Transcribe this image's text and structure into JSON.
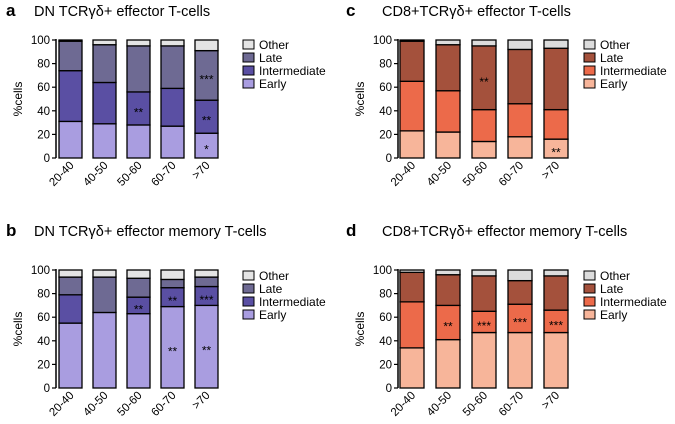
{
  "chart_data": [
    {
      "panel": "a",
      "type": "bar",
      "stacked": true,
      "title": "DN TCRγδ+ effector T-cells",
      "ylabel": "%cells",
      "ylim": [
        0,
        100
      ],
      "yticks": [
        0,
        20,
        40,
        60,
        80,
        100
      ],
      "categories": [
        "20-40",
        "40-50",
        "50-60",
        "60-70",
        ">70"
      ],
      "series": [
        {
          "name": "Early",
          "color": "#a99de0",
          "values": [
            31,
            29,
            28,
            27,
            21
          ]
        },
        {
          "name": "Intermediate",
          "color": "#5a4fa3",
          "values": [
            43,
            35,
            28,
            32,
            28
          ]
        },
        {
          "name": "Late",
          "color": "#6e6a93",
          "values": [
            25,
            32,
            39,
            36,
            42
          ]
        },
        {
          "name": "Other",
          "color": "#e4e4e4",
          "values": [
            1,
            4,
            5,
            5,
            9
          ]
        }
      ],
      "legend": [
        "Other",
        "Late",
        "Intermediate",
        "Early"
      ],
      "annotations": [
        {
          "category": ">70",
          "series": "Late",
          "text": "***"
        },
        {
          "category": "50-60",
          "series": "Intermediate",
          "text": "**"
        },
        {
          "category": ">70",
          "series": "Intermediate",
          "text": "**"
        },
        {
          "category": ">70",
          "series": "Early",
          "text": "*"
        }
      ]
    },
    {
      "panel": "b",
      "type": "bar",
      "stacked": true,
      "title": "DN TCRγδ+ effector memory T-cells",
      "ylabel": "%cells",
      "ylim": [
        0,
        100
      ],
      "yticks": [
        0,
        20,
        40,
        60,
        80,
        100
      ],
      "categories": [
        "20-40",
        "40-50",
        "50-60",
        "60-70",
        ">70"
      ],
      "series": [
        {
          "name": "Early",
          "color": "#a99de0",
          "values": [
            55,
            64,
            63,
            69,
            70
          ]
        },
        {
          "name": "Intermediate",
          "color": "#5a4fa3",
          "values": [
            24,
            0,
            14,
            16,
            16
          ]
        },
        {
          "name": "Late",
          "color": "#6e6a93",
          "values": [
            15,
            30,
            16,
            7,
            8
          ]
        },
        {
          "name": "Other",
          "color": "#e4e4e4",
          "values": [
            6,
            6,
            7,
            8,
            6
          ]
        }
      ],
      "legend": [
        "Other",
        "Late",
        "Intermediate",
        "Early"
      ],
      "annotations": [
        {
          "category": "50-60",
          "series": "Intermediate",
          "text": "**"
        },
        {
          "category": "60-70",
          "series": "Intermediate",
          "text": "**"
        },
        {
          "category": ">70",
          "series": "Intermediate",
          "text": "***"
        },
        {
          "category": "60-70",
          "series": "Early",
          "text": "**"
        },
        {
          "category": ">70",
          "series": "Early",
          "text": "**"
        }
      ]
    },
    {
      "panel": "c",
      "type": "bar",
      "stacked": true,
      "title": "CD8+TCRγδ+ effector T-cells",
      "ylabel": "%cells",
      "ylim": [
        0,
        100
      ],
      "yticks": [
        0,
        20,
        40,
        60,
        80,
        100
      ],
      "categories": [
        "20-40",
        "40-50",
        "50-60",
        "60-70",
        ">70"
      ],
      "series": [
        {
          "name": "Early",
          "color": "#f7b59a",
          "values": [
            23,
            22,
            14,
            18,
            16
          ]
        },
        {
          "name": "Intermediate",
          "color": "#ec6a4a",
          "values": [
            42,
            35,
            27,
            28,
            25
          ]
        },
        {
          "name": "Late",
          "color": "#a4513c",
          "values": [
            34,
            39,
            54,
            46,
            52
          ]
        },
        {
          "name": "Other",
          "color": "#dcdcdc",
          "values": [
            1,
            4,
            5,
            8,
            7
          ]
        }
      ],
      "legend": [
        "Other",
        "Late",
        "Intermediate",
        "Early"
      ],
      "annotations": [
        {
          "category": "50-60",
          "series": "Late",
          "text": "**"
        },
        {
          "category": ">70",
          "series": "Early",
          "text": "**"
        }
      ]
    },
    {
      "panel": "d",
      "type": "bar",
      "stacked": true,
      "title": "CD8+TCRγδ+ effector memory T-cells",
      "ylabel": "%cells",
      "ylim": [
        0,
        100
      ],
      "yticks": [
        0,
        20,
        40,
        60,
        80,
        100
      ],
      "categories": [
        "20-40",
        "40-50",
        "50-60",
        "60-70",
        ">70"
      ],
      "series": [
        {
          "name": "Early",
          "color": "#f7b59a",
          "values": [
            34,
            41,
            47,
            47,
            47
          ]
        },
        {
          "name": "Intermediate",
          "color": "#ec6a4a",
          "values": [
            39,
            29,
            18,
            24,
            19
          ]
        },
        {
          "name": "Late",
          "color": "#a4513c",
          "values": [
            25,
            26,
            30,
            20,
            29
          ]
        },
        {
          "name": "Other",
          "color": "#dcdcdc",
          "values": [
            2,
            4,
            5,
            9,
            5
          ]
        }
      ],
      "legend": [
        "Other",
        "Late",
        "Intermediate",
        "Early"
      ],
      "annotations": [
        {
          "category": "40-50",
          "series": "Intermediate",
          "text": "**"
        },
        {
          "category": "50-60",
          "series": "Intermediate",
          "text": "***"
        },
        {
          "category": "60-70",
          "series": "Intermediate",
          "text": "***"
        },
        {
          "category": ">70",
          "series": "Intermediate",
          "text": "***"
        }
      ]
    }
  ]
}
